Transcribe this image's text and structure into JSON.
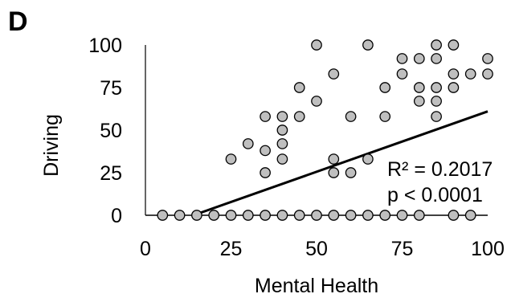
{
  "chart_data": {
    "type": "scatter",
    "panel_label": "D",
    "xlabel": "Mental Health",
    "ylabel": "Driving",
    "xlim": [
      0,
      100
    ],
    "ylim": [
      0,
      100
    ],
    "x_ticks": [
      "0",
      "25",
      "50",
      "75",
      "100"
    ],
    "y_ticks": [
      "0",
      "25",
      "50",
      "75",
      "100"
    ],
    "grid": false,
    "marker_fill": "#bfbfbf",
    "marker_edge": "#000000",
    "points": [
      {
        "x": 5,
        "y": 0
      },
      {
        "x": 10,
        "y": 0
      },
      {
        "x": 15,
        "y": 0
      },
      {
        "x": 20,
        "y": 0
      },
      {
        "x": 25,
        "y": 0
      },
      {
        "x": 30,
        "y": 0
      },
      {
        "x": 35,
        "y": 0
      },
      {
        "x": 40,
        "y": 0
      },
      {
        "x": 45,
        "y": 0
      },
      {
        "x": 50,
        "y": 0
      },
      {
        "x": 55,
        "y": 0
      },
      {
        "x": 60,
        "y": 0
      },
      {
        "x": 65,
        "y": 0
      },
      {
        "x": 70,
        "y": 0
      },
      {
        "x": 75,
        "y": 0
      },
      {
        "x": 80,
        "y": 0
      },
      {
        "x": 90,
        "y": 0
      },
      {
        "x": 95,
        "y": 0
      },
      {
        "x": 25,
        "y": 33
      },
      {
        "x": 30,
        "y": 42
      },
      {
        "x": 35,
        "y": 25
      },
      {
        "x": 35,
        "y": 38
      },
      {
        "x": 35,
        "y": 58
      },
      {
        "x": 40,
        "y": 33
      },
      {
        "x": 40,
        "y": 42
      },
      {
        "x": 40,
        "y": 50
      },
      {
        "x": 40,
        "y": 58
      },
      {
        "x": 45,
        "y": 58
      },
      {
        "x": 45,
        "y": 75
      },
      {
        "x": 50,
        "y": 67
      },
      {
        "x": 50,
        "y": 100
      },
      {
        "x": 55,
        "y": 25
      },
      {
        "x": 55,
        "y": 33
      },
      {
        "x": 55,
        "y": 83
      },
      {
        "x": 60,
        "y": 25
      },
      {
        "x": 60,
        "y": 58
      },
      {
        "x": 65,
        "y": 33
      },
      {
        "x": 65,
        "y": 100
      },
      {
        "x": 70,
        "y": 58
      },
      {
        "x": 70,
        "y": 75
      },
      {
        "x": 75,
        "y": 83
      },
      {
        "x": 75,
        "y": 92
      },
      {
        "x": 80,
        "y": 67
      },
      {
        "x": 80,
        "y": 75
      },
      {
        "x": 80,
        "y": 92
      },
      {
        "x": 85,
        "y": 58
      },
      {
        "x": 85,
        "y": 67
      },
      {
        "x": 85,
        "y": 75
      },
      {
        "x": 85,
        "y": 92
      },
      {
        "x": 85,
        "y": 100
      },
      {
        "x": 90,
        "y": 75
      },
      {
        "x": 90,
        "y": 83
      },
      {
        "x": 90,
        "y": 100
      },
      {
        "x": 95,
        "y": 83
      },
      {
        "x": 100,
        "y": 83
      },
      {
        "x": 100,
        "y": 92
      }
    ],
    "trendline": {
      "x": [
        14,
        100
      ],
      "y": [
        0,
        61
      ]
    },
    "annotations": [
      "R² = 0.2017",
      "p < 0.0001"
    ]
  }
}
